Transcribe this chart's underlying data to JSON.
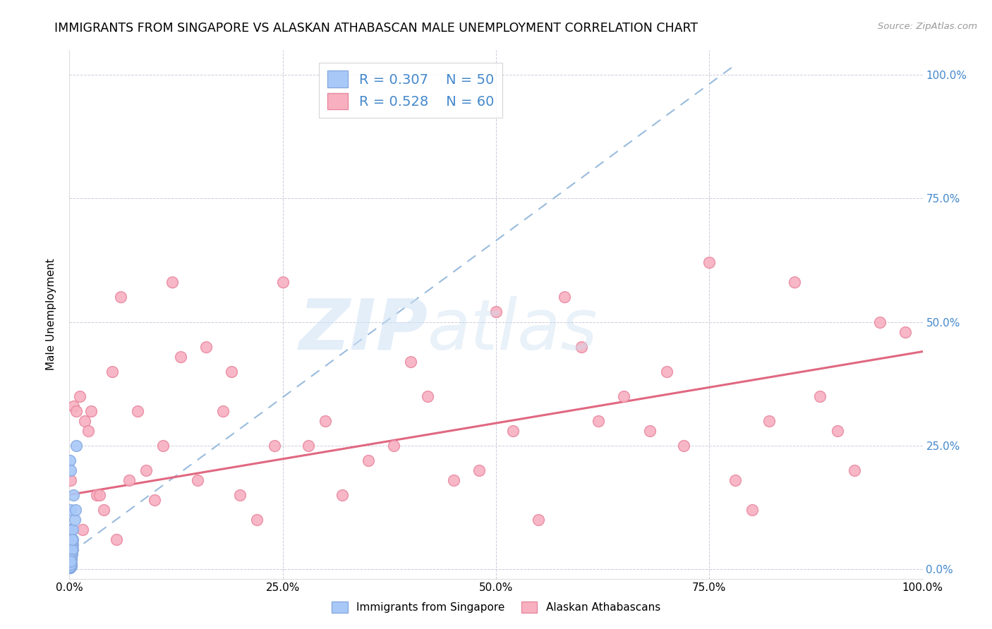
{
  "title": "IMMIGRANTS FROM SINGAPORE VS ALASKAN ATHABASCAN MALE UNEMPLOYMENT CORRELATION CHART",
  "source": "Source: ZipAtlas.com",
  "ylabel": "Male Unemployment",
  "r_singapore": 0.307,
  "n_singapore": 50,
  "r_athabascan": 0.528,
  "n_athabascan": 60,
  "color_singapore": "#a8c8f8",
  "color_athabascan": "#f8b0c0",
  "color_singapore_edge": "#88aae0",
  "color_athabascan_edge": "#e888a0",
  "color_singapore_line": "#99bbdd",
  "color_athabascan_line": "#e06880",
  "color_blue_text": "#4488cc",
  "sg_line_x0": 0.0,
  "sg_line_y0": 0.03,
  "sg_line_x1": 0.78,
  "sg_line_y1": 1.02,
  "at_line_x0": 0.0,
  "at_line_y0": 0.15,
  "at_line_x1": 1.0,
  "at_line_y1": 0.44,
  "singapore_x": [
    0.0005,
    0.001,
    0.0008,
    0.0012,
    0.0015,
    0.002,
    0.0018,
    0.0025,
    0.003,
    0.0035,
    0.004,
    0.003,
    0.002,
    0.001,
    0.0005,
    0.0015,
    0.001,
    0.0008,
    0.0012,
    0.002,
    0.0025,
    0.003,
    0.0035,
    0.001,
    0.0015,
    0.005,
    0.004,
    0.006,
    0.007,
    0.002,
    0.001,
    0.0005,
    0.0003,
    0.0008,
    0.001,
    0.0015,
    0.0006,
    0.0004,
    0.0007,
    0.001,
    0.0012,
    0.0005,
    0.0003,
    0.0002,
    0.0004,
    0.0005,
    0.001,
    0.0015,
    0.008,
    0.003
  ],
  "singapore_y": [
    0.22,
    0.2,
    0.02,
    0.03,
    0.01,
    0.005,
    0.01,
    0.02,
    0.03,
    0.05,
    0.04,
    0.06,
    0.05,
    0.08,
    0.01,
    0.12,
    0.03,
    0.02,
    0.01,
    0.03,
    0.05,
    0.04,
    0.06,
    0.005,
    0.01,
    0.15,
    0.08,
    0.1,
    0.12,
    0.02,
    0.01,
    0.005,
    0.003,
    0.005,
    0.008,
    0.01,
    0.005,
    0.003,
    0.007,
    0.015,
    0.02,
    0.005,
    0.003,
    0.002,
    0.004,
    0.005,
    0.01,
    0.015,
    0.25,
    0.06
  ],
  "athabascan_x": [
    0.001,
    0.005,
    0.012,
    0.018,
    0.025,
    0.032,
    0.04,
    0.05,
    0.06,
    0.07,
    0.09,
    0.1,
    0.12,
    0.15,
    0.18,
    0.2,
    0.22,
    0.25,
    0.28,
    0.32,
    0.35,
    0.38,
    0.4,
    0.45,
    0.48,
    0.5,
    0.55,
    0.58,
    0.6,
    0.65,
    0.68,
    0.7,
    0.75,
    0.78,
    0.8,
    0.85,
    0.88,
    0.9,
    0.92,
    0.95,
    0.98,
    0.003,
    0.015,
    0.035,
    0.055,
    0.08,
    0.11,
    0.16,
    0.19,
    0.24,
    0.3,
    0.42,
    0.52,
    0.62,
    0.72,
    0.82,
    0.002,
    0.008,
    0.022,
    0.13
  ],
  "athabascan_y": [
    0.18,
    0.33,
    0.35,
    0.3,
    0.32,
    0.15,
    0.12,
    0.4,
    0.55,
    0.18,
    0.2,
    0.14,
    0.58,
    0.18,
    0.32,
    0.15,
    0.1,
    0.58,
    0.25,
    0.15,
    0.22,
    0.25,
    0.42,
    0.18,
    0.2,
    0.52,
    0.1,
    0.55,
    0.45,
    0.35,
    0.28,
    0.4,
    0.62,
    0.18,
    0.12,
    0.58,
    0.35,
    0.28,
    0.2,
    0.5,
    0.48,
    0.05,
    0.08,
    0.15,
    0.06,
    0.32,
    0.25,
    0.45,
    0.4,
    0.25,
    0.3,
    0.35,
    0.28,
    0.3,
    0.25,
    0.3,
    0.08,
    0.32,
    0.28,
    0.43
  ],
  "xlim": [
    0.0,
    1.0
  ],
  "ylim": [
    -0.02,
    1.05
  ],
  "xticks": [
    0.0,
    0.25,
    0.5,
    0.75,
    1.0
  ],
  "yticks": [
    0.0,
    0.25,
    0.5,
    0.75,
    1.0
  ],
  "xticklabels": [
    "0.0%",
    "25.0%",
    "50.0%",
    "75.0%",
    "100.0%"
  ],
  "yticklabels_right": [
    "0.0%",
    "25.0%",
    "50.0%",
    "75.0%",
    "100.0%"
  ],
  "legend_labels": [
    "Immigrants from Singapore",
    "Alaskan Athabascans"
  ]
}
